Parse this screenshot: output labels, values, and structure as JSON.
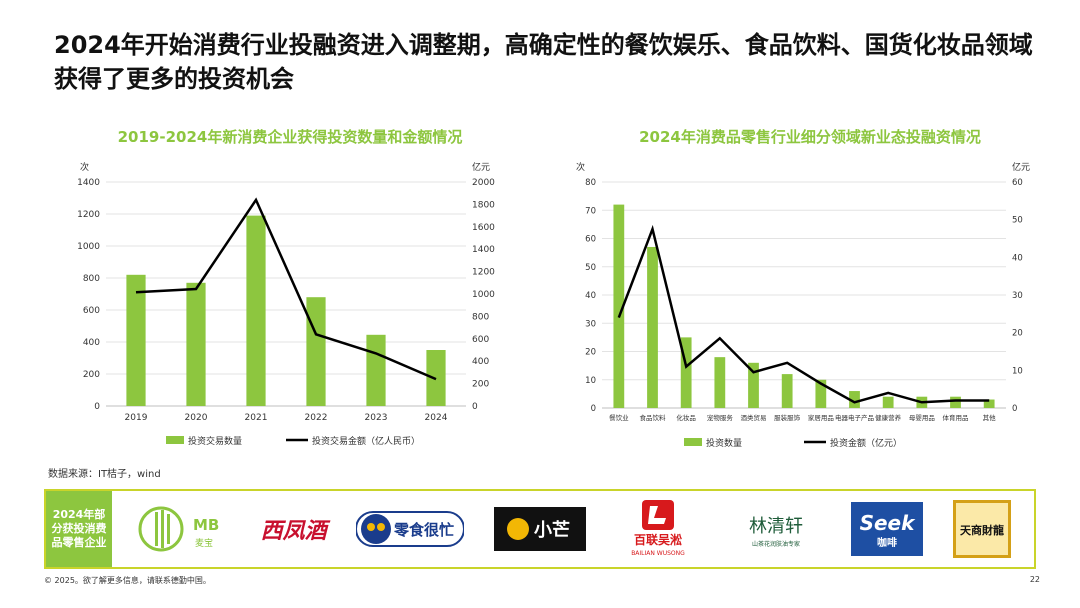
{
  "page": {
    "title": "2024年开始消费行业投融资进入调整期，高确定性的餐饮娱乐、食品饮料、国货化妆品领域获得了更多的投资机会"
  },
  "chart_data": [
    {
      "type": "bar",
      "title": "2019-2024年新消费企业获得投资数量和金额情况",
      "left_unit": "次",
      "right_unit": "亿元",
      "categories": [
        "2019",
        "2020",
        "2021",
        "2022",
        "2023",
        "2024"
      ],
      "ylim": [
        0,
        1400
      ],
      "yticks": [
        0,
        200,
        400,
        600,
        800,
        1000,
        1200,
        1400
      ],
      "y2lim": [
        0,
        2000
      ],
      "y2ticks": [
        0,
        200,
        400,
        600,
        800,
        1000,
        1200,
        1400,
        1600,
        1800,
        2000
      ],
      "series": [
        {
          "name": "投资交易数量",
          "kind": "bar",
          "axis": "left",
          "color": "#8DC63F",
          "values": [
            820,
            770,
            1190,
            680,
            445,
            350
          ]
        },
        {
          "name": "投资交易金额（亿人民币）",
          "kind": "line",
          "axis": "right",
          "color": "#000000",
          "values": [
            1015,
            1045,
            1840,
            640,
            470,
            240
          ]
        }
      ],
      "legend": "bottom",
      "grid": true
    },
    {
      "type": "bar",
      "title": "2024年消费品零售行业细分领域新业态投融资情况",
      "left_unit": "次",
      "right_unit": "亿元",
      "categories": [
        "餐饮业",
        "食品饮料",
        "化妆品",
        "宠物服务",
        "酒类贸易",
        "服装服饰",
        "家居用品",
        "电器电子产品",
        "健康营养",
        "母婴用品",
        "体育用品",
        "其他"
      ],
      "ylim": [
        0,
        80
      ],
      "yticks": [
        0,
        10,
        20,
        30,
        40,
        50,
        60,
        70,
        80
      ],
      "y2lim": [
        0,
        60
      ],
      "y2ticks": [
        0,
        10,
        20,
        30,
        40,
        50,
        60
      ],
      "series": [
        {
          "name": "投资数量",
          "kind": "bar",
          "axis": "left",
          "color": "#8DC63F",
          "values": [
            72,
            57,
            25,
            18,
            16,
            12,
            10,
            6,
            4,
            4,
            4,
            3
          ]
        },
        {
          "name": "投资金额（亿元）",
          "kind": "line",
          "axis": "right",
          "color": "#000000",
          "values": [
            24,
            47.5,
            11,
            18.5,
            9.5,
            12,
            6.5,
            1.5,
            4,
            1.5,
            2,
            2
          ]
        }
      ],
      "legend": "bottom",
      "grid": true
    }
  ],
  "source": "数据来源：IT桔子，wind",
  "companies": {
    "label": "2024年部分获投消费品零售企业",
    "logos": [
      {
        "name": "MB",
        "sub": "麦宝",
        "color": "#8DC63F"
      },
      {
        "name": "西凤酒",
        "color": "#C8102E"
      },
      {
        "name": "零食很忙",
        "color": "#1A3C8C"
      },
      {
        "name": "小芒",
        "color": "#F2B705"
      },
      {
        "name": "百联吴淞",
        "sub": "BAILIAN WUSONG",
        "color": "#D7191C"
      },
      {
        "name": "林清轩",
        "sub": "山茶花润肤油专家",
        "color": "#1F5C3A"
      },
      {
        "name": "Seek",
        "sub": "咖啡",
        "color": "#1E4FA3"
      },
      {
        "name": "天商財龍",
        "color": "#D4A017"
      }
    ]
  },
  "footer": {
    "left": "© 2025。欲了解更多信息，请联系德勤中国。",
    "right": "22"
  }
}
